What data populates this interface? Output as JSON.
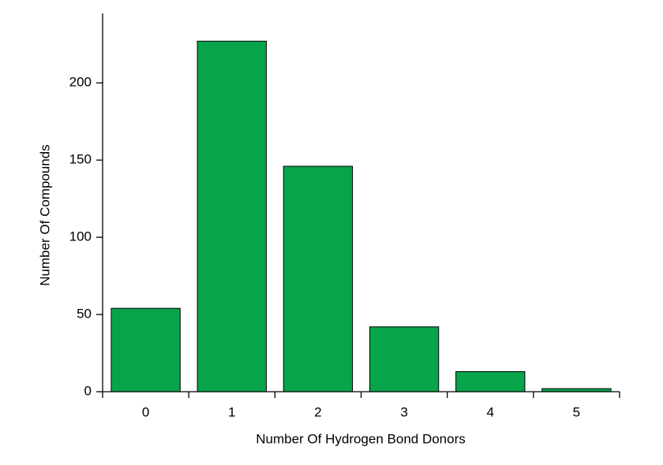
{
  "chart_data": {
    "type": "bar",
    "x_label": "Number Of Hydrogen Bond Donors",
    "y_label": "Number Of Compounds",
    "categories": [
      "0",
      "1",
      "2",
      "3",
      "4",
      "5"
    ],
    "values": [
      54,
      227,
      146,
      42,
      13,
      2
    ],
    "color": "#08a44b",
    "ylim": [
      0,
      245
    ],
    "yticks": [
      0,
      50,
      100,
      150,
      200
    ]
  }
}
